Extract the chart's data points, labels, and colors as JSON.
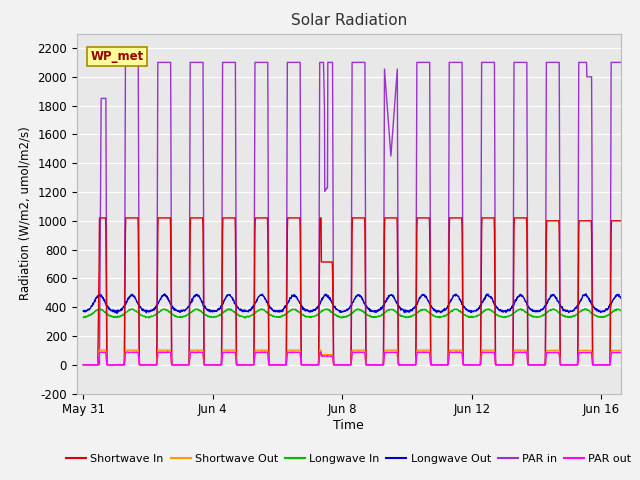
{
  "title": "Solar Radiation",
  "xlabel": "Time",
  "ylabel": "Radiation (W/m2, umol/m2/s)",
  "ylim": [
    -200,
    2300
  ],
  "yticks": [
    -200,
    0,
    200,
    400,
    600,
    800,
    1000,
    1200,
    1400,
    1600,
    1800,
    2000,
    2200
  ],
  "xtick_labels": [
    "May 31",
    "Jun 4",
    "Jun 8",
    "Jun 12",
    "Jun 16"
  ],
  "xtick_positions": [
    0,
    4,
    8,
    12,
    16
  ],
  "series": {
    "shortwave_in": {
      "color": "#dd0000",
      "label": "Shortwave In",
      "lw": 1.0
    },
    "shortwave_out": {
      "color": "#ff9900",
      "label": "Shortwave Out",
      "lw": 1.0
    },
    "longwave_in": {
      "color": "#00bb00",
      "label": "Longwave In",
      "lw": 1.0
    },
    "longwave_out": {
      "color": "#0000cc",
      "label": "Longwave Out",
      "lw": 1.0
    },
    "par_in": {
      "color": "#9933cc",
      "label": "PAR in",
      "lw": 1.0
    },
    "par_out": {
      "color": "#ff00ff",
      "label": "PAR out",
      "lw": 1.0
    }
  },
  "annotation_text": "WP_met",
  "annotation_bg": "#ffff99",
  "annotation_border": "#aa8800",
  "background_color": "#e8e8e8",
  "grid_color": "#ffffff",
  "fig_bg": "#f2f2f2",
  "title_fontsize": 11
}
